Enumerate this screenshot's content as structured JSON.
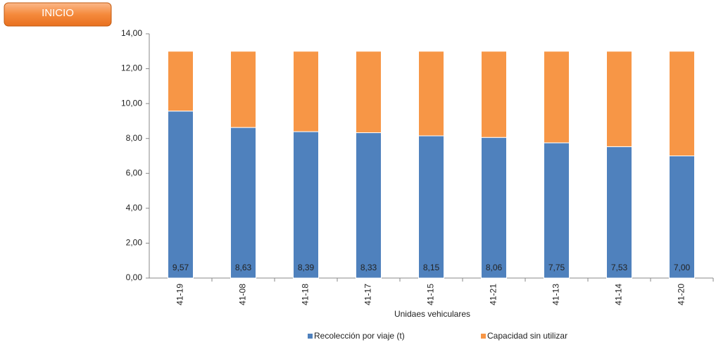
{
  "button": {
    "label": "INICIO"
  },
  "chart_data": {
    "type": "stacked-bar",
    "x_label": "Unidaes vehiculares",
    "categories": [
      "41-19",
      "41-08",
      "41-18",
      "41-17",
      "41-15",
      "41-21",
      "41-13",
      "41-14",
      "41-20"
    ],
    "series": [
      {
        "name": "Recolección por viaje (t)",
        "color": "#4f81bd",
        "values": [
          9.57,
          8.63,
          8.39,
          8.33,
          8.15,
          8.06,
          7.75,
          7.53,
          7.0
        ],
        "value_labels": [
          "9,57",
          "8,63",
          "8,39",
          "8,33",
          "8,15",
          "8,06",
          "7,75",
          "7,53",
          "7,00"
        ]
      },
      {
        "name": "Capacidad sin utilizar",
        "color": "#f79646",
        "values": [
          3.43,
          4.37,
          4.61,
          4.67,
          4.85,
          4.94,
          5.25,
          5.47,
          6.0
        ]
      }
    ],
    "ylim": [
      0,
      14
    ],
    "yticks": [
      {
        "value": 0,
        "label": "0,00"
      },
      {
        "value": 2,
        "label": "2,00"
      },
      {
        "value": 4,
        "label": "4,00"
      },
      {
        "value": 6,
        "label": "6,00"
      },
      {
        "value": 8,
        "label": "8,00"
      },
      {
        "value": 10,
        "label": "10,00"
      },
      {
        "value": 12,
        "label": "12,00"
      },
      {
        "value": 14,
        "label": "14,00"
      }
    ],
    "legend": "bottom"
  }
}
